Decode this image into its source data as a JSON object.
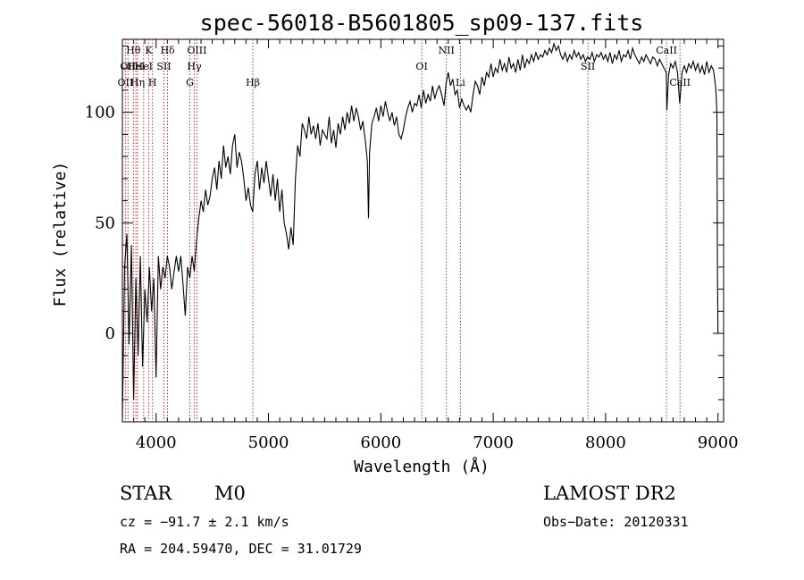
{
  "chart_data": {
    "type": "line",
    "title": "spec-56018-B5601805_sp09-137.fits",
    "xlabel": "Wavelength (Å)",
    "ylabel": "Flux (relative)",
    "xlim": [
      3700,
      9050
    ],
    "ylim": [
      -40,
      133
    ],
    "x_ticks": [
      4000,
      5000,
      6000,
      7000,
      8000,
      9000
    ],
    "y_ticks": [
      0,
      50,
      100
    ],
    "grid": false,
    "series": [
      {
        "points": [
          [
            3700,
            -38
          ],
          [
            3720,
            30
          ],
          [
            3740,
            45
          ],
          [
            3760,
            -5
          ],
          [
            3780,
            40
          ],
          [
            3800,
            -30
          ],
          [
            3820,
            25
          ],
          [
            3840,
            -10
          ],
          [
            3860,
            35
          ],
          [
            3880,
            -15
          ],
          [
            3900,
            20
          ],
          [
            3920,
            5
          ],
          [
            3940,
            30
          ],
          [
            3960,
            10
          ],
          [
            3980,
            25
          ],
          [
            4000,
            -20
          ],
          [
            4020,
            35
          ],
          [
            4040,
            20
          ],
          [
            4060,
            30
          ],
          [
            4080,
            25
          ],
          [
            4100,
            35
          ],
          [
            4120,
            30
          ],
          [
            4140,
            20
          ],
          [
            4160,
            28
          ],
          [
            4180,
            35
          ],
          [
            4200,
            28
          ],
          [
            4220,
            35
          ],
          [
            4240,
            22
          ],
          [
            4260,
            8
          ],
          [
            4280,
            30
          ],
          [
            4300,
            25
          ],
          [
            4320,
            35
          ],
          [
            4340,
            28
          ],
          [
            4360,
            42
          ],
          [
            4380,
            52
          ],
          [
            4400,
            60
          ],
          [
            4420,
            55
          ],
          [
            4440,
            65
          ],
          [
            4460,
            58
          ],
          [
            4480,
            62
          ],
          [
            4500,
            70
          ],
          [
            4520,
            75
          ],
          [
            4540,
            65
          ],
          [
            4560,
            78
          ],
          [
            4580,
            70
          ],
          [
            4600,
            85
          ],
          [
            4620,
            75
          ],
          [
            4640,
            80
          ],
          [
            4660,
            72
          ],
          [
            4680,
            85
          ],
          [
            4700,
            90
          ],
          [
            4720,
            75
          ],
          [
            4740,
            82
          ],
          [
            4760,
            78
          ],
          [
            4780,
            70
          ],
          [
            4800,
            60
          ],
          [
            4820,
            66
          ],
          [
            4840,
            58
          ],
          [
            4860,
            55
          ],
          [
            4880,
            72
          ],
          [
            4900,
            78
          ],
          [
            4920,
            65
          ],
          [
            4940,
            75
          ],
          [
            4960,
            68
          ],
          [
            4980,
            78
          ],
          [
            5000,
            70
          ],
          [
            5020,
            62
          ],
          [
            5040,
            72
          ],
          [
            5060,
            60
          ],
          [
            5080,
            70
          ],
          [
            5100,
            55
          ],
          [
            5120,
            65
          ],
          [
            5140,
            50
          ],
          [
            5160,
            45
          ],
          [
            5180,
            38
          ],
          [
            5200,
            48
          ],
          [
            5220,
            40
          ],
          [
            5240,
            70
          ],
          [
            5260,
            85
          ],
          [
            5280,
            80
          ],
          [
            5300,
            95
          ],
          [
            5320,
            92
          ],
          [
            5340,
            88
          ],
          [
            5360,
            98
          ],
          [
            5380,
            90
          ],
          [
            5400,
            94
          ],
          [
            5420,
            88
          ],
          [
            5440,
            95
          ],
          [
            5460,
            85
          ],
          [
            5480,
            92
          ],
          [
            5500,
            90
          ],
          [
            5520,
            88
          ],
          [
            5540,
            98
          ],
          [
            5560,
            86
          ],
          [
            5580,
            92
          ],
          [
            5600,
            84
          ],
          [
            5620,
            95
          ],
          [
            5640,
            90
          ],
          [
            5660,
            98
          ],
          [
            5680,
            92
          ],
          [
            5700,
            100
          ],
          [
            5720,
            95
          ],
          [
            5740,
            103
          ],
          [
            5760,
            96
          ],
          [
            5780,
            102
          ],
          [
            5800,
            98
          ],
          [
            5820,
            92
          ],
          [
            5840,
            96
          ],
          [
            5860,
            88
          ],
          [
            5880,
            78
          ],
          [
            5890,
            52
          ],
          [
            5900,
            82
          ],
          [
            5920,
            95
          ],
          [
            5940,
            98
          ],
          [
            5960,
            102
          ],
          [
            5980,
            96
          ],
          [
            6000,
            103
          ],
          [
            6020,
            98
          ],
          [
            6040,
            105
          ],
          [
            6060,
            100
          ],
          [
            6080,
            96
          ],
          [
            6100,
            100
          ],
          [
            6120,
            94
          ],
          [
            6140,
            98
          ],
          [
            6160,
            90
          ],
          [
            6180,
            88
          ],
          [
            6200,
            92
          ],
          [
            6220,
            98
          ],
          [
            6240,
            102
          ],
          [
            6260,
            105
          ],
          [
            6280,
            100
          ],
          [
            6300,
            104
          ],
          [
            6320,
            103
          ],
          [
            6340,
            108
          ],
          [
            6360,
            102
          ],
          [
            6380,
            110
          ],
          [
            6400,
            104
          ],
          [
            6420,
            108
          ],
          [
            6440,
            105
          ],
          [
            6460,
            112
          ],
          [
            6480,
            106
          ],
          [
            6500,
            110
          ],
          [
            6520,
            112
          ],
          [
            6540,
            108
          ],
          [
            6563,
            103
          ],
          [
            6580,
            113
          ],
          [
            6600,
            118
          ],
          [
            6620,
            112
          ],
          [
            6640,
            115
          ],
          [
            6660,
            108
          ],
          [
            6680,
            110
          ],
          [
            6700,
            102
          ],
          [
            6720,
            106
          ],
          [
            6740,
            103
          ],
          [
            6760,
            101
          ],
          [
            6780,
            103
          ],
          [
            6800,
            100
          ],
          [
            6820,
            108
          ],
          [
            6840,
            114
          ],
          [
            6860,
            112
          ],
          [
            6880,
            108
          ],
          [
            6900,
            116
          ],
          [
            6920,
            112
          ],
          [
            6940,
            118
          ],
          [
            6960,
            116
          ],
          [
            6980,
            122
          ],
          [
            7000,
            116
          ],
          [
            7020,
            120
          ],
          [
            7040,
            118
          ],
          [
            7060,
            124
          ],
          [
            7080,
            119
          ],
          [
            7100,
            122
          ],
          [
            7120,
            118
          ],
          [
            7140,
            125
          ],
          [
            7160,
            120
          ],
          [
            7180,
            122
          ],
          [
            7200,
            118
          ],
          [
            7220,
            124
          ],
          [
            7240,
            119
          ],
          [
            7260,
            126
          ],
          [
            7280,
            120
          ],
          [
            7300,
            124
          ],
          [
            7320,
            122
          ],
          [
            7340,
            126
          ],
          [
            7360,
            123
          ],
          [
            7380,
            127
          ],
          [
            7400,
            124
          ],
          [
            7420,
            126
          ],
          [
            7440,
            125
          ],
          [
            7460,
            128
          ],
          [
            7480,
            126
          ],
          [
            7500,
            129
          ],
          [
            7520,
            127
          ],
          [
            7540,
            131
          ],
          [
            7560,
            128
          ],
          [
            7580,
            130
          ],
          [
            7600,
            126
          ],
          [
            7620,
            124
          ],
          [
            7640,
            127
          ],
          [
            7660,
            123
          ],
          [
            7680,
            126
          ],
          [
            7700,
            124
          ],
          [
            7720,
            128
          ],
          [
            7740,
            125
          ],
          [
            7760,
            127
          ],
          [
            7780,
            124
          ],
          [
            7800,
            126
          ],
          [
            7820,
            123
          ],
          [
            7840,
            125
          ],
          [
            7860,
            124
          ],
          [
            7880,
            127
          ],
          [
            7900,
            123
          ],
          [
            7920,
            126
          ],
          [
            7940,
            125
          ],
          [
            7960,
            127
          ],
          [
            7980,
            124
          ],
          [
            8000,
            126
          ],
          [
            8020,
            123
          ],
          [
            8040,
            127
          ],
          [
            8060,
            122
          ],
          [
            8080,
            126
          ],
          [
            8100,
            124
          ],
          [
            8120,
            128
          ],
          [
            8140,
            123
          ],
          [
            8160,
            126
          ],
          [
            8180,
            125
          ],
          [
            8200,
            128
          ],
          [
            8220,
            124
          ],
          [
            8240,
            129
          ],
          [
            8260,
            126
          ],
          [
            8280,
            124
          ],
          [
            8300,
            122
          ],
          [
            8320,
            125
          ],
          [
            8340,
            123
          ],
          [
            8360,
            126
          ],
          [
            8380,
            124
          ],
          [
            8400,
            122
          ],
          [
            8420,
            125
          ],
          [
            8440,
            124
          ],
          [
            8460,
            121
          ],
          [
            8480,
            124
          ],
          [
            8500,
            122
          ],
          [
            8520,
            120
          ],
          [
            8540,
            118
          ],
          [
            8545,
            101
          ],
          [
            8560,
            117
          ],
          [
            8580,
            122
          ],
          [
            8600,
            120
          ],
          [
            8620,
            123
          ],
          [
            8640,
            118
          ],
          [
            8660,
            104
          ],
          [
            8680,
            118
          ],
          [
            8700,
            121
          ],
          [
            8720,
            118
          ],
          [
            8740,
            122
          ],
          [
            8760,
            120
          ],
          [
            8780,
            123
          ],
          [
            8800,
            119
          ],
          [
            8820,
            122
          ],
          [
            8840,
            118
          ],
          [
            8860,
            121
          ],
          [
            8880,
            117
          ],
          [
            8900,
            123
          ],
          [
            8920,
            118
          ],
          [
            8940,
            121
          ],
          [
            8960,
            119
          ],
          [
            8980,
            111
          ],
          [
            8990,
            100
          ],
          [
            8995,
            30
          ],
          [
            9000,
            0
          ]
        ]
      }
    ],
    "line_markers": [
      {
        "wavelength": 3727,
        "label": "OII",
        "row": 2
      },
      {
        "wavelength": 3750,
        "label": "OII",
        "row": 1
      },
      {
        "wavelength": 3798,
        "label": "Hθ",
        "row": 0
      },
      {
        "wavelength": 3820,
        "label": "HeI",
        "row": 1
      },
      {
        "wavelength": 3835,
        "label": "Hη",
        "row": 2
      },
      {
        "wavelength": 3889,
        "label": "HeI",
        "row": 1
      },
      {
        "wavelength": 3934,
        "label": "K",
        "row": 0
      },
      {
        "wavelength": 3968,
        "label": "H",
        "row": 2
      },
      {
        "wavelength": 4070,
        "label": "SII",
        "row": 1
      },
      {
        "wavelength": 4102,
        "label": "Hδ",
        "row": 0
      },
      {
        "wavelength": 4300,
        "label": "G",
        "row": 2
      },
      {
        "wavelength": 4340,
        "label": "Hγ",
        "row": 1
      },
      {
        "wavelength": 4363,
        "label": "OIII",
        "row": 0
      },
      {
        "wavelength": 4861,
        "label": "Hβ",
        "row": 2
      },
      {
        "wavelength": 6364,
        "label": "OI",
        "row": 1
      },
      {
        "wavelength": 6583,
        "label": "NII",
        "row": 0
      },
      {
        "wavelength": 6708,
        "label": "Li",
        "row": 2
      },
      {
        "wavelength": 7843,
        "label": "SII",
        "row": 1
      },
      {
        "wavelength": 8542,
        "label": "CaII",
        "row": 0
      },
      {
        "wavelength": 8662,
        "label": "CaII",
        "row": 2
      }
    ]
  },
  "info": {
    "object_class": "STAR",
    "subclass": "M0",
    "survey": "LAMOST DR2",
    "cz": "cz = −91.7 ± 2.1 km/s",
    "obs_date": "Obs−Date: 20120331",
    "coords": "RA = 204.59470, DEC =  31.01729"
  },
  "colors": {
    "line_markers": "#b22222",
    "spectrum": "#000000"
  }
}
